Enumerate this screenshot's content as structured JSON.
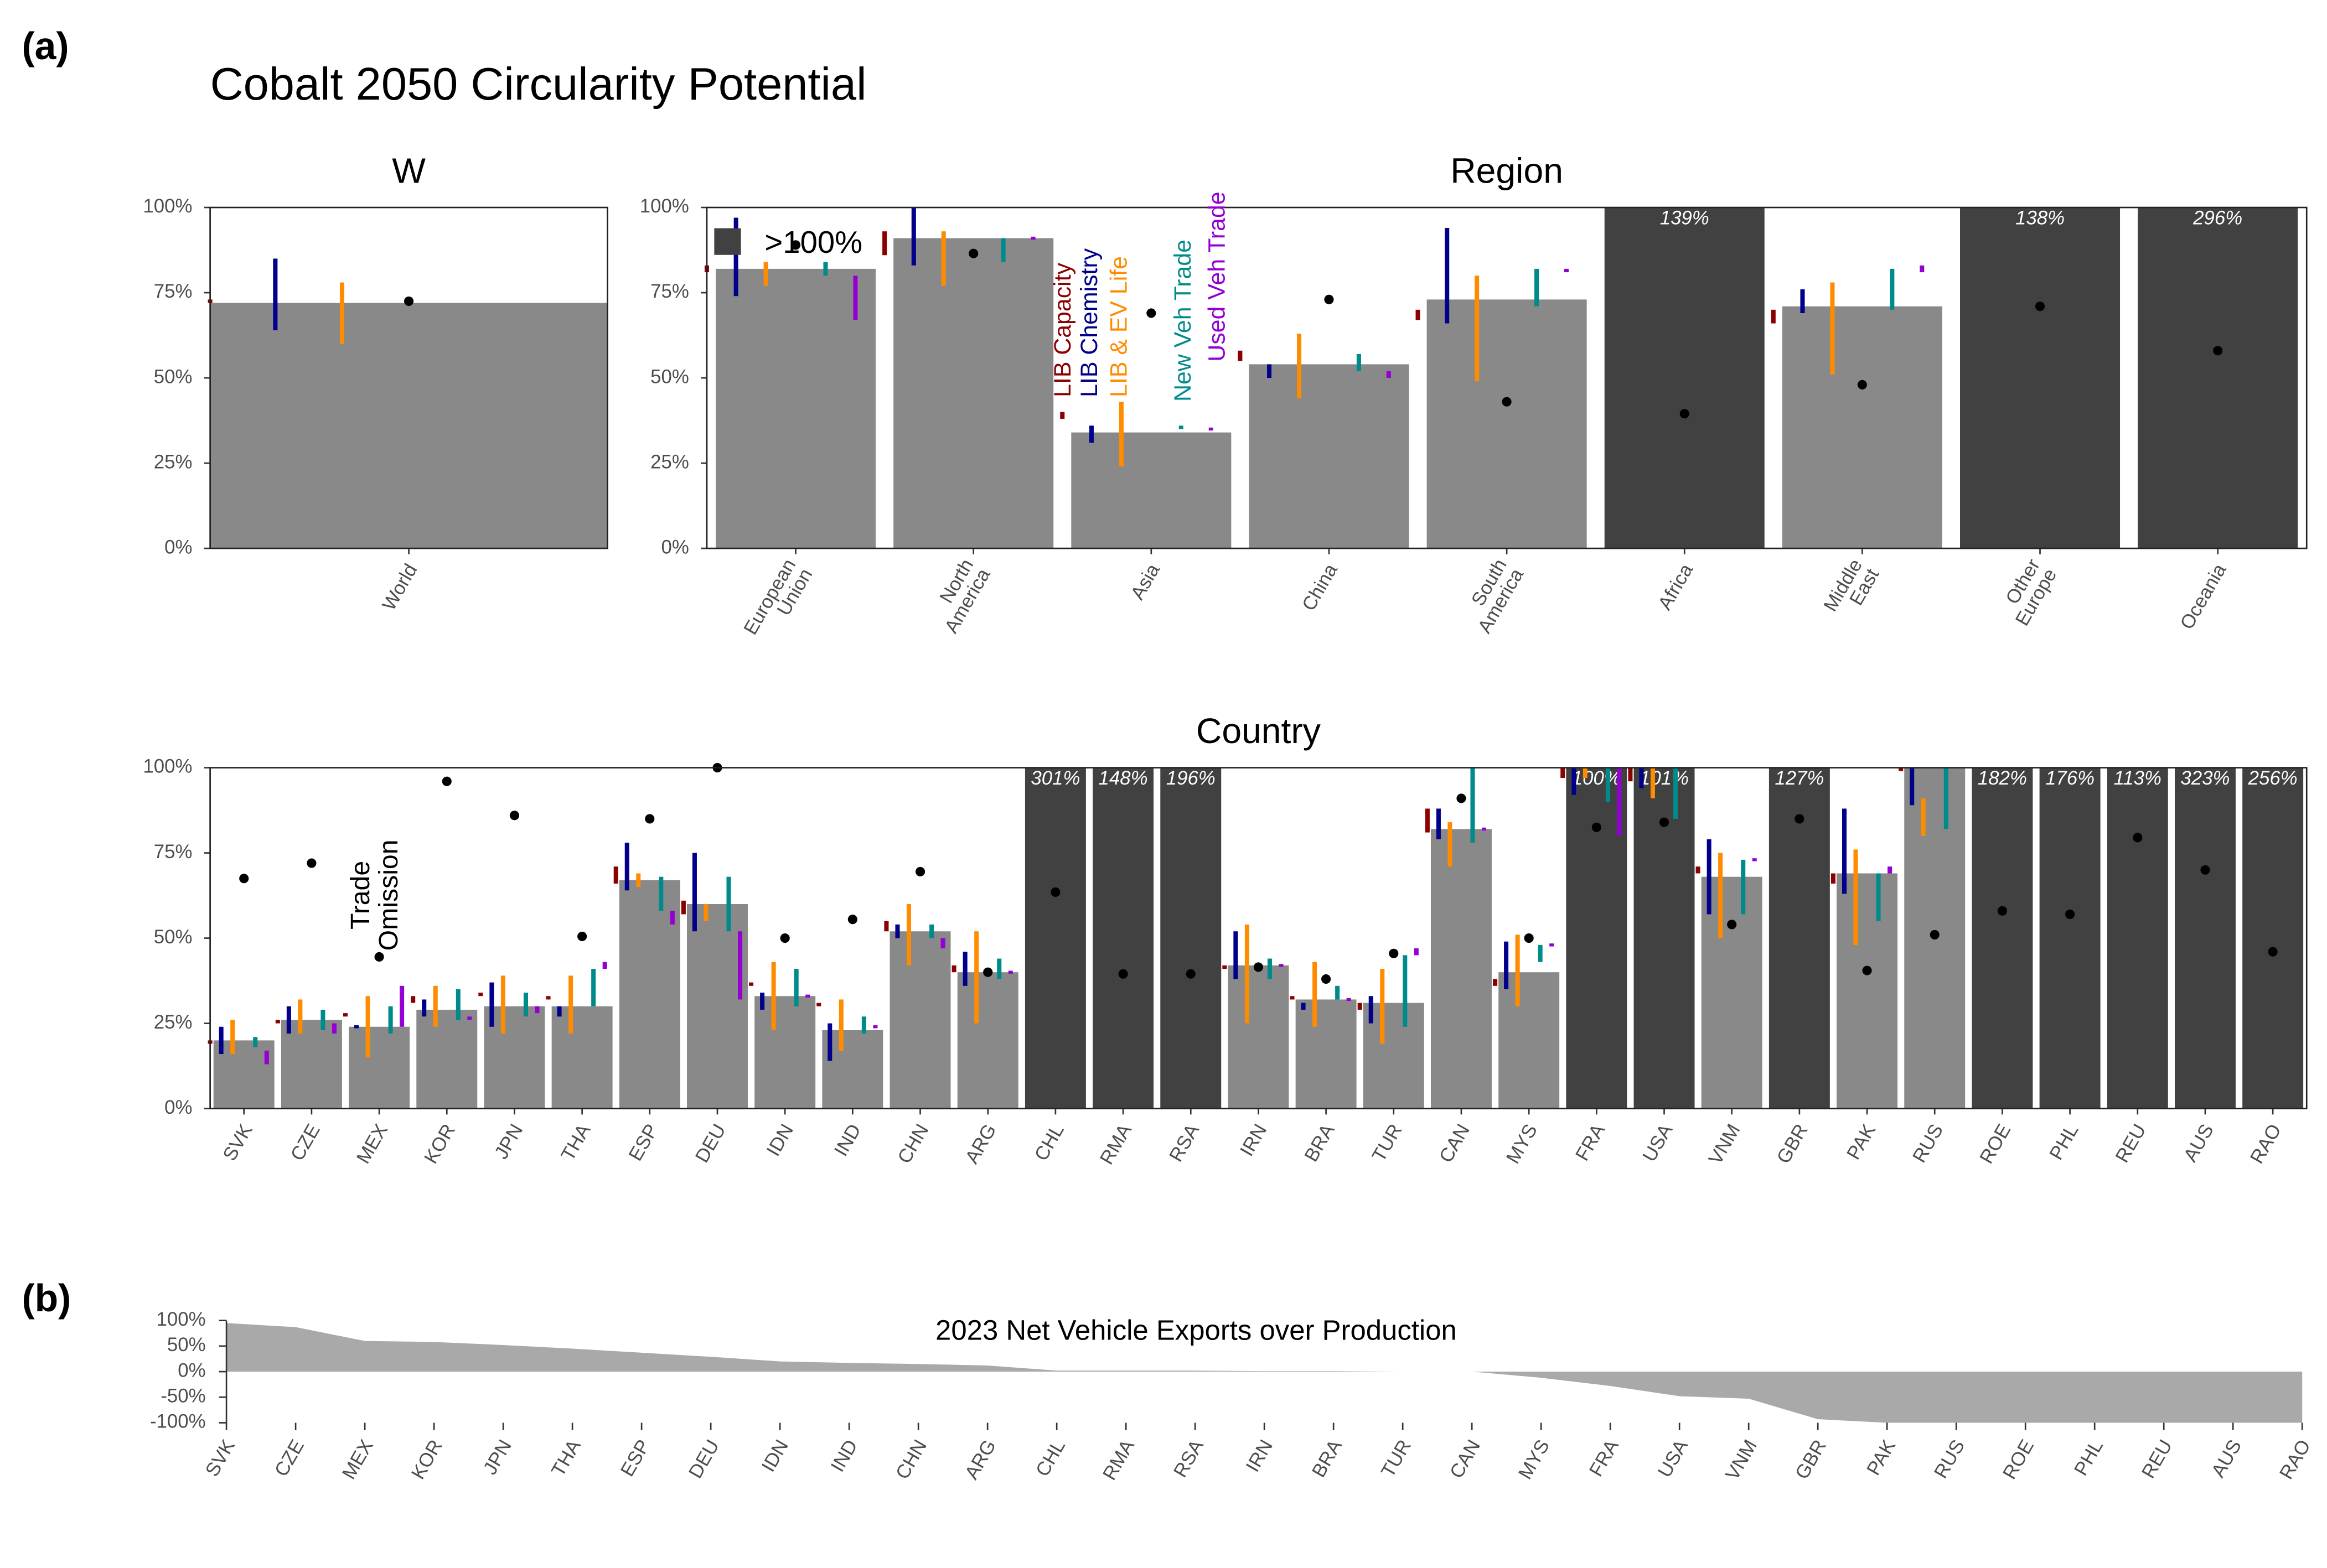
{
  "title": "Cobalt 2050 Circularity Potential",
  "panel_labels": [
    "(a)",
    "(b)"
  ],
  "chart_data": [
    {
      "type": "bar",
      "title": "W",
      "categories": [
        "World"
      ],
      "values": [
        72
      ],
      "value_labels": [
        null
      ],
      "dots": [
        72.5
      ],
      "bar_color": "#898989",
      "over_color": "#414141",
      "ylim": [
        0,
        100
      ],
      "yticks": [
        {
          "value": 0,
          "label": "0%"
        },
        {
          "value": 25,
          "label": "25%"
        },
        {
          "value": 50,
          "label": "50%"
        },
        {
          "value": 75,
          "label": "75%"
        },
        {
          "value": 100,
          "label": "100%"
        }
      ],
      "sensitivities": [
        {
          "low": [
            72
          ],
          "high": [
            73
          ]
        },
        {
          "low": [
            64
          ],
          "high": [
            85
          ]
        },
        {
          "low": [
            60
          ],
          "high": [
            78
          ]
        },
        {
          "low": [
            null
          ],
          "high": [
            null
          ]
        },
        {
          "low": [
            null
          ],
          "high": [
            null
          ]
        }
      ]
    },
    {
      "type": "bar",
      "title": "Region",
      "categories": [
        "European Union",
        "North America",
        "Asia",
        "China",
        "South America",
        "Africa",
        "Middle East",
        "Other Europe",
        "Oceania"
      ],
      "values": [
        82,
        91,
        34,
        54,
        73,
        139,
        71,
        138,
        296
      ],
      "value_labels": [
        null,
        null,
        null,
        null,
        null,
        "139%",
        null,
        "138%",
        "296%"
      ],
      "dots": [
        89,
        86.5,
        69,
        73,
        43,
        39.5,
        48,
        71,
        58
      ],
      "bar_color": "#898989",
      "over_color": "#414141",
      "ylim": [
        0,
        100
      ],
      "yticks": [
        {
          "value": 0,
          "label": "0%"
        },
        {
          "value": 25,
          "label": "25%"
        },
        {
          "value": 50,
          "label": "50%"
        },
        {
          "value": 75,
          "label": "75%"
        },
        {
          "value": 100,
          "label": "100%"
        }
      ],
      "over_label": ">100%",
      "factors": [
        {
          "name": "LIB Capacity",
          "color": "#8b0000"
        },
        {
          "name": "LIB Chemistry",
          "color": "#00008b"
        },
        {
          "name": "LIB & EV Life",
          "color": "#ff8c00"
        },
        {
          "name": "New Veh Trade",
          "color": "#008b8b"
        },
        {
          "name": "Used Veh Trade",
          "color": "#9400d3"
        }
      ],
      "sensitivities": [
        {
          "low": [
            81,
            86,
            38,
            55,
            67,
            null,
            66,
            null,
            null
          ],
          "high": [
            83,
            93,
            40,
            58,
            70,
            null,
            70,
            null,
            null
          ]
        },
        {
          "low": [
            74,
            83,
            31,
            50,
            66,
            null,
            69,
            null,
            null
          ],
          "high": [
            97,
            100,
            36,
            54,
            94,
            null,
            76,
            null,
            null
          ]
        },
        {
          "low": [
            77,
            77,
            24,
            44,
            49,
            null,
            51,
            null,
            null
          ],
          "high": [
            84,
            93,
            43,
            63,
            80,
            null,
            78,
            null,
            null
          ]
        },
        {
          "low": [
            80,
            84,
            35,
            52,
            71,
            null,
            70,
            null,
            null
          ],
          "high": [
            84,
            91,
            36,
            57,
            82,
            null,
            82,
            null,
            null
          ]
        },
        {
          "low": [
            67,
            91,
            35,
            50,
            81,
            null,
            81,
            null,
            null
          ],
          "high": [
            80,
            91,
            35,
            52,
            82,
            null,
            83,
            null,
            null
          ]
        }
      ]
    },
    {
      "type": "bar",
      "title": "Country",
      "annotation": "Trade Omission",
      "categories": [
        "SVK",
        "CZE",
        "MEX",
        "KOR",
        "JPN",
        "THA",
        "ESP",
        "DEU",
        "IDN",
        "IND",
        "CHN",
        "ARG",
        "CHL",
        "RMA",
        "RSA",
        "IRN",
        "BRA",
        "TUR",
        "CAN",
        "MYS",
        "FRA",
        "USA",
        "VNM",
        "GBR",
        "PAK",
        "RUS",
        "ROE",
        "PHL",
        "REU",
        "AUS",
        "RAO"
      ],
      "values": [
        20,
        26,
        24,
        29,
        30,
        30,
        67,
        60,
        33,
        23,
        52,
        40,
        301,
        148,
        196,
        42,
        32,
        31,
        82,
        40,
        100.4,
        101,
        68,
        127,
        69,
        100,
        182,
        176,
        113,
        323,
        256
      ],
      "value_labels": [
        null,
        null,
        null,
        null,
        null,
        null,
        null,
        null,
        null,
        null,
        null,
        null,
        "301%",
        "148%",
        "196%",
        null,
        null,
        null,
        null,
        null,
        "100%",
        "101%",
        null,
        "127%",
        null,
        null,
        "182%",
        "176%",
        "113%",
        "323%",
        "256%"
      ],
      "dots": [
        67.5,
        72,
        44.5,
        96,
        86,
        50.5,
        85,
        100,
        50,
        55.5,
        69.5,
        40,
        63.5,
        39.5,
        39.5,
        41.5,
        38,
        45.5,
        91,
        50,
        82.5,
        84,
        54,
        85,
        40.5,
        51,
        58,
        57,
        79.5,
        70,
        46
      ],
      "bar_color": "#898989",
      "over_color": "#414141",
      "ylim": [
        0,
        100
      ],
      "yticks": [
        {
          "value": 0,
          "label": "0%"
        },
        {
          "value": 25,
          "label": "25%"
        },
        {
          "value": 50,
          "label": "50%"
        },
        {
          "value": 75,
          "label": "75%"
        },
        {
          "value": 100,
          "label": "100%"
        }
      ],
      "sensitivities": [
        {
          "low": [
            19,
            25,
            27,
            31,
            33,
            32,
            66,
            57,
            36,
            30,
            52,
            40,
            null,
            null,
            null,
            41,
            32,
            29,
            81,
            36,
            97,
            96,
            69,
            null,
            66,
            99,
            null,
            null,
            null,
            null,
            null
          ],
          "high": [
            20,
            26,
            28,
            33,
            34,
            33,
            71,
            61,
            37,
            31,
            55,
            42,
            null,
            null,
            null,
            42,
            33,
            31,
            88,
            38,
            100,
            100,
            71,
            null,
            69,
            100,
            null,
            null,
            null,
            null,
            null
          ]
        },
        {
          "low": [
            16,
            22,
            24,
            27,
            24,
            27,
            64,
            52,
            29,
            14,
            50,
            36,
            null,
            null,
            null,
            38,
            29,
            25,
            79,
            35,
            92,
            94,
            57,
            null,
            63,
            89,
            null,
            null,
            null,
            null,
            null
          ],
          "high": [
            24,
            30,
            24,
            32,
            37,
            30,
            78,
            75,
            34,
            25,
            54,
            46,
            null,
            null,
            null,
            52,
            31,
            33,
            88,
            49,
            100,
            100,
            79,
            null,
            88,
            100,
            null,
            null,
            null,
            null,
            null
          ]
        },
        {
          "low": [
            16,
            22,
            15,
            24,
            22,
            22,
            65,
            55,
            23,
            17,
            42,
            25,
            null,
            null,
            null,
            25,
            24,
            19,
            71,
            30,
            97,
            91,
            50,
            null,
            48,
            80,
            null,
            null,
            null,
            null,
            null
          ],
          "high": [
            26,
            32,
            33,
            36,
            39,
            39,
            69,
            60,
            43,
            32,
            60,
            52,
            null,
            null,
            null,
            54,
            43,
            41,
            84,
            51,
            100,
            100,
            75,
            null,
            76,
            91,
            null,
            null,
            null,
            null,
            null
          ]
        },
        {
          "low": [
            18,
            23,
            22,
            26,
            27,
            30,
            58,
            52,
            30,
            22,
            50,
            38,
            null,
            null,
            null,
            38,
            32,
            24,
            78,
            43,
            90,
            85,
            57,
            null,
            55,
            82,
            null,
            null,
            null,
            null,
            null
          ],
          "high": [
            21,
            29,
            30,
            35,
            34,
            41,
            68,
            68,
            41,
            27,
            54,
            44,
            null,
            null,
            null,
            44,
            36,
            45,
            100,
            48,
            100,
            100,
            73,
            null,
            69,
            100,
            null,
            null,
            null,
            null,
            null
          ]
        },
        {
          "low": [
            13,
            22,
            24,
            26,
            28,
            41,
            54,
            32,
            33,
            24,
            47,
            40,
            null,
            null,
            null,
            42,
            32,
            45,
            82,
            48,
            80,
            null,
            73,
            null,
            69,
            null,
            null,
            null,
            null,
            null,
            null
          ],
          "high": [
            17,
            25,
            36,
            27,
            30,
            43,
            58,
            52,
            33,
            24,
            50,
            40,
            null,
            null,
            null,
            42,
            32,
            47,
            82,
            48,
            100,
            null,
            73,
            null,
            71,
            null,
            null,
            null,
            null,
            null,
            null
          ]
        }
      ]
    },
    {
      "type": "area",
      "title": "2023 Net Vehicle Exports over Production",
      "color": "#a9a9a9",
      "categories": [
        "SVK",
        "CZE",
        "MEX",
        "KOR",
        "JPN",
        "THA",
        "ESP",
        "DEU",
        "IDN",
        "IND",
        "CHN",
        "ARG",
        "CHL",
        "RMA",
        "RSA",
        "IRN",
        "BRA",
        "TUR",
        "CAN",
        "MYS",
        "FRA",
        "USA",
        "VNM",
        "GBR",
        "PAK",
        "RUS",
        "ROE",
        "PHL",
        "REU",
        "AUS",
        "RAO"
      ],
      "values": [
        95,
        87,
        60,
        58,
        52,
        45,
        37,
        29,
        20,
        17,
        15,
        12,
        2,
        2,
        2,
        1,
        1,
        0,
        0,
        -12,
        -28,
        -48,
        -53,
        -93,
        -100,
        -100,
        -100,
        -100,
        -100,
        -100,
        -100
      ],
      "ylim": [
        -100,
        100
      ],
      "yticks": [
        {
          "value": 100,
          "label": "100%"
        },
        {
          "value": 50,
          "label": "50%"
        },
        {
          "value": 0,
          "label": "0%"
        },
        {
          "value": -50,
          "label": "-50%"
        },
        {
          "value": -100,
          "label": "-100%"
        }
      ]
    }
  ]
}
